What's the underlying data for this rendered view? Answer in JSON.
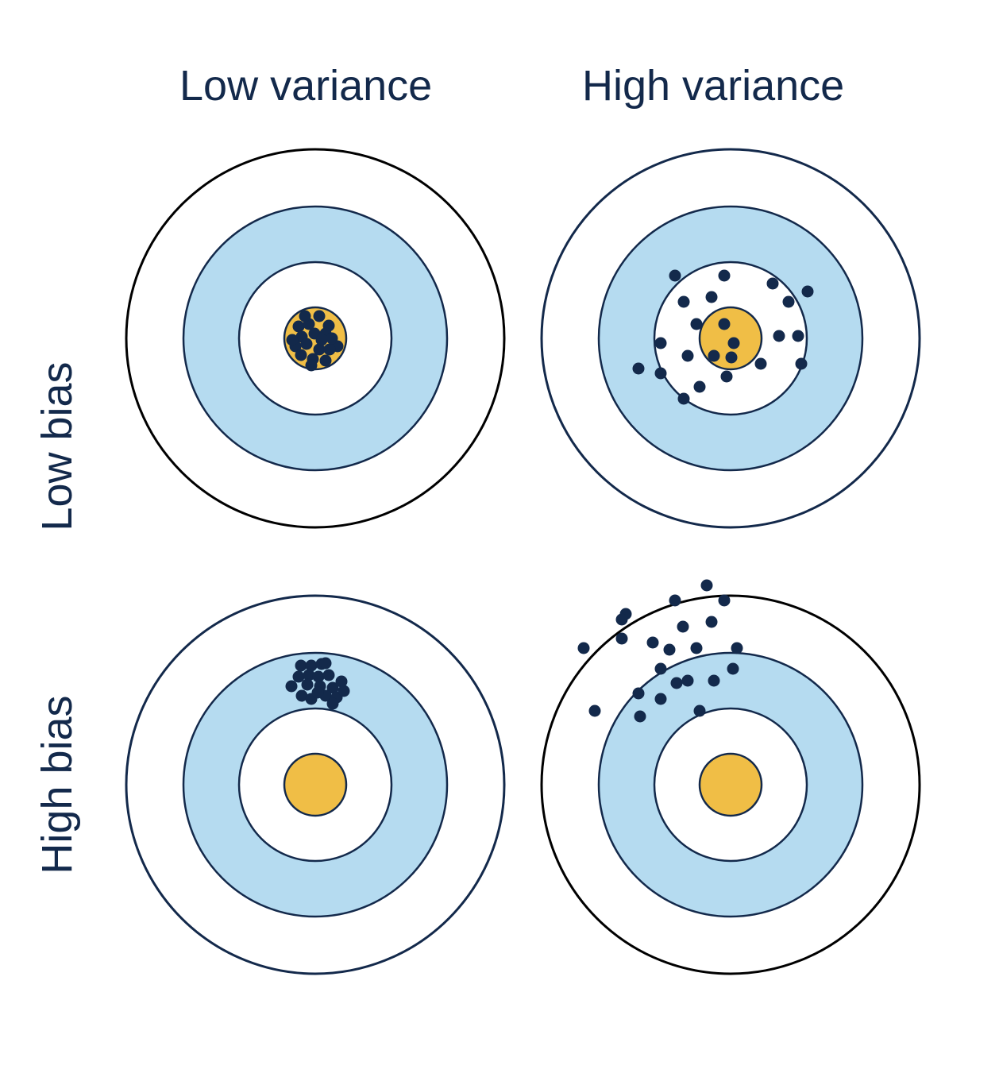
{
  "labels": {
    "col_low_variance": "Low variance",
    "col_high_variance": "High variance",
    "row_low_bias": "Low bias",
    "row_high_bias": "High bias"
  },
  "colors": {
    "text": "#13294b",
    "outer_ring": "#ffffff",
    "middle_ring": "#b5dbf0",
    "inner_ring": "#ffffff",
    "bullseye": "#f0be46",
    "dots": "#13294b",
    "outline": "#13294b"
  },
  "panels": [
    {
      "name": "low-bias-low-variance",
      "column": "Low variance",
      "row": "Low bias"
    },
    {
      "name": "low-bias-high-variance",
      "column": "High variance",
      "row": "Low bias"
    },
    {
      "name": "high-bias-low-variance",
      "column": "Low variance",
      "row": "High bias"
    },
    {
      "name": "high-bias-high-variance",
      "column": "High variance",
      "row": "High bias"
    }
  ]
}
